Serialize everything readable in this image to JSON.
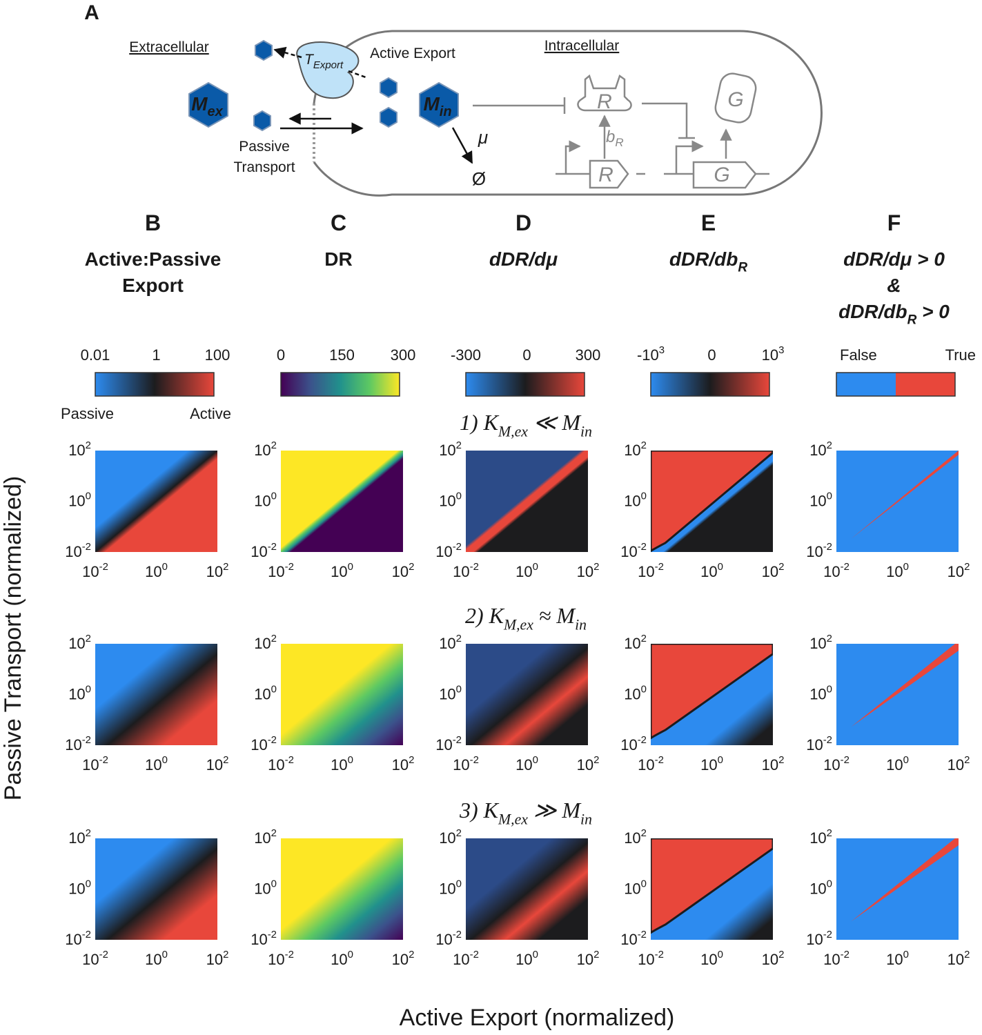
{
  "panel_a": {
    "label": "A",
    "extracellular": "Extracellular",
    "intracellular": "Intracellular",
    "active_export": "Active  Export",
    "passive_transport": [
      "Passive",
      "Transport"
    ],
    "m_ex": [
      "M",
      "ex"
    ],
    "m_in": [
      "M",
      "in"
    ],
    "t_export": [
      "T",
      "Export"
    ],
    "mu": "μ",
    "null_set": "Ø",
    "repressor": "R",
    "repressor_gene": "R",
    "gfp": "G",
    "gfp_gene": "G",
    "b_r": [
      "b",
      "R"
    ]
  },
  "columns": [
    {
      "label": "B",
      "title": [
        [
          "Active:Passive"
        ],
        [
          "Export"
        ]
      ],
      "colorbar_ticks": [
        [
          "0.01"
        ],
        [
          "1"
        ],
        [
          "100"
        ]
      ],
      "colorbar_ends": [
        "Passive",
        "Active"
      ]
    },
    {
      "label": "C",
      "title": [
        [
          "DR"
        ]
      ],
      "colorbar_ticks": [
        [
          "0"
        ],
        [
          "150"
        ],
        [
          "300"
        ]
      ]
    },
    {
      "label": "D",
      "title": [
        [
          "dDR/dμ"
        ]
      ],
      "colorbar_ticks": [
        [
          "-300"
        ],
        [
          "0"
        ],
        [
          "300"
        ]
      ]
    },
    {
      "label": "E",
      "title": [
        [
          "dDR/db",
          "R"
        ]
      ],
      "colorbar_ticks": [
        [
          "-10",
          "3"
        ],
        [
          "0"
        ],
        [
          "10",
          "3"
        ]
      ]
    },
    {
      "label": "F",
      "title": [
        [
          "dDR/dμ > 0"
        ],
        [
          "&"
        ],
        [
          "dDR/db",
          "R",
          " > 0"
        ]
      ],
      "colorbar_ticks": [
        [
          "False"
        ],
        [
          "True"
        ]
      ]
    }
  ],
  "rows": [
    [
      "1) ",
      "",
      "K",
      "M,ex",
      " ≪ ",
      "",
      "M",
      "in"
    ],
    [
      "2) ",
      "",
      "K",
      "M,ex",
      " ≈ ",
      "",
      "M",
      "in"
    ],
    [
      "3) ",
      "",
      "K",
      "M,ex",
      " ≫ ",
      "",
      "M",
      "in"
    ]
  ],
  "axis_ticks": [
    [
      "10",
      "-2"
    ],
    [
      "10",
      "0"
    ],
    [
      "10",
      "2"
    ]
  ],
  "y_label": "Passive Transport (normalized)",
  "x_label": "Active Export (normalized)"
}
